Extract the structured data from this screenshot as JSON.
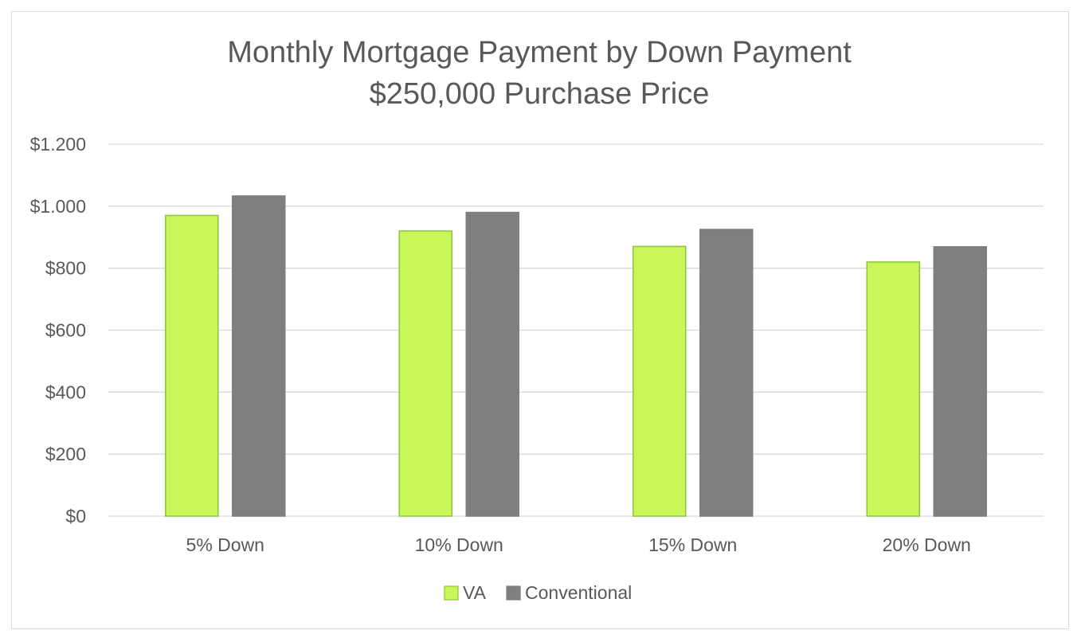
{
  "chart_data": {
    "type": "bar",
    "title": "Monthly Mortgage Payment by Down Payment",
    "subtitle": "$250,000 Purchase Price",
    "xlabel": "",
    "ylabel": "",
    "categories": [
      "5% Down",
      "10% Down",
      "15% Down",
      "20% Down"
    ],
    "series": [
      {
        "name": "VA",
        "values": [
          970,
          920,
          870,
          820
        ],
        "color": "#c9f75a",
        "stroke": "#8cc63f"
      },
      {
        "name": "Conventional",
        "values": [
          1033,
          980,
          925,
          869
        ],
        "color": "#7f7f7f",
        "stroke": "#7f7f7f"
      }
    ],
    "ylim": [
      0,
      1200
    ],
    "yticks": [
      0,
      200,
      400,
      600,
      800,
      1000,
      1200
    ],
    "ytick_labels": [
      "$0",
      "$200",
      "$400",
      "$600",
      "$800",
      "$1.000",
      "$1.200"
    ],
    "grid": true,
    "gridline_color": "#d9d9d9",
    "legend": "bottom-center"
  }
}
